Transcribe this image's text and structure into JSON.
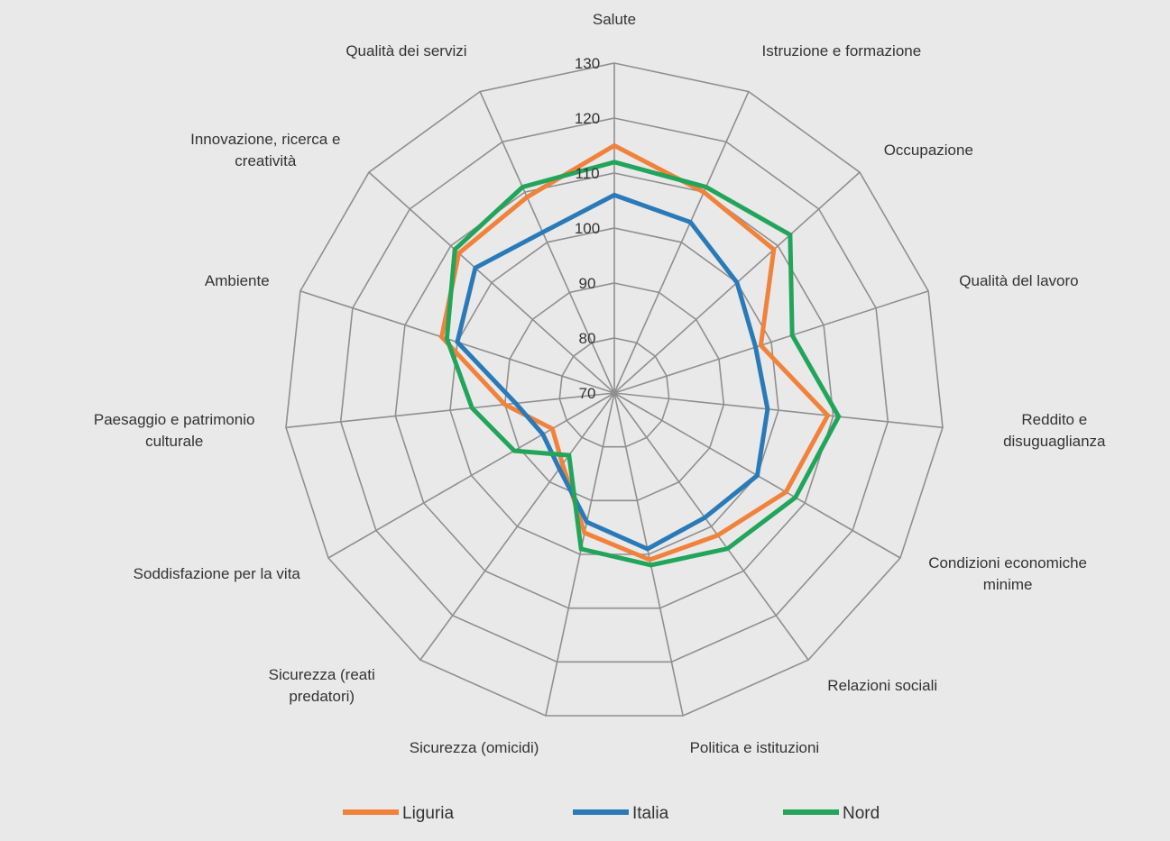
{
  "chart_data": {
    "type": "radar",
    "categories": [
      [
        "Salute"
      ],
      [
        "Istruzione e formazione"
      ],
      [
        "Occupazione"
      ],
      [
        "Qualità del lavoro"
      ],
      [
        "Reddito e",
        "disuguaglianza"
      ],
      [
        "Condizioni economiche",
        "minime"
      ],
      [
        "Relazioni sociali"
      ],
      [
        "Politica e istituzioni"
      ],
      [
        "Sicurezza (omicidi)"
      ],
      [
        "Sicurezza (reati",
        "predatori)"
      ],
      [
        "Soddisfazione per la vita"
      ],
      [
        "Paesaggio e patrimonio",
        "culturale"
      ],
      [
        "Ambiente"
      ],
      [
        "Innovazione, ricerca e",
        "creatività"
      ],
      [
        "Qualità dei servizi"
      ]
    ],
    "ticks": [
      70,
      80,
      90,
      100,
      110,
      120,
      130
    ],
    "rlim": [
      70,
      130
    ],
    "grid": true,
    "legend_position": "bottom",
    "series": [
      {
        "name": "Liguria",
        "color": "#f0823c",
        "values": [
          115,
          110,
          109,
          98,
          109,
          106,
          102,
          101,
          96,
          86,
          83,
          90,
          103,
          108,
          109
        ]
      },
      {
        "name": "Italia",
        "color": "#2a7ab8",
        "values": [
          106,
          104,
          100,
          97,
          98,
          100,
          98,
          99,
          94,
          87,
          85,
          88,
          100,
          104,
          102
        ]
      },
      {
        "name": "Nord",
        "color": "#22a55b",
        "values": [
          112,
          111,
          113,
          104,
          111,
          108,
          105,
          102,
          99,
          84,
          91,
          96,
          102,
          109,
          111
        ]
      }
    ]
  }
}
